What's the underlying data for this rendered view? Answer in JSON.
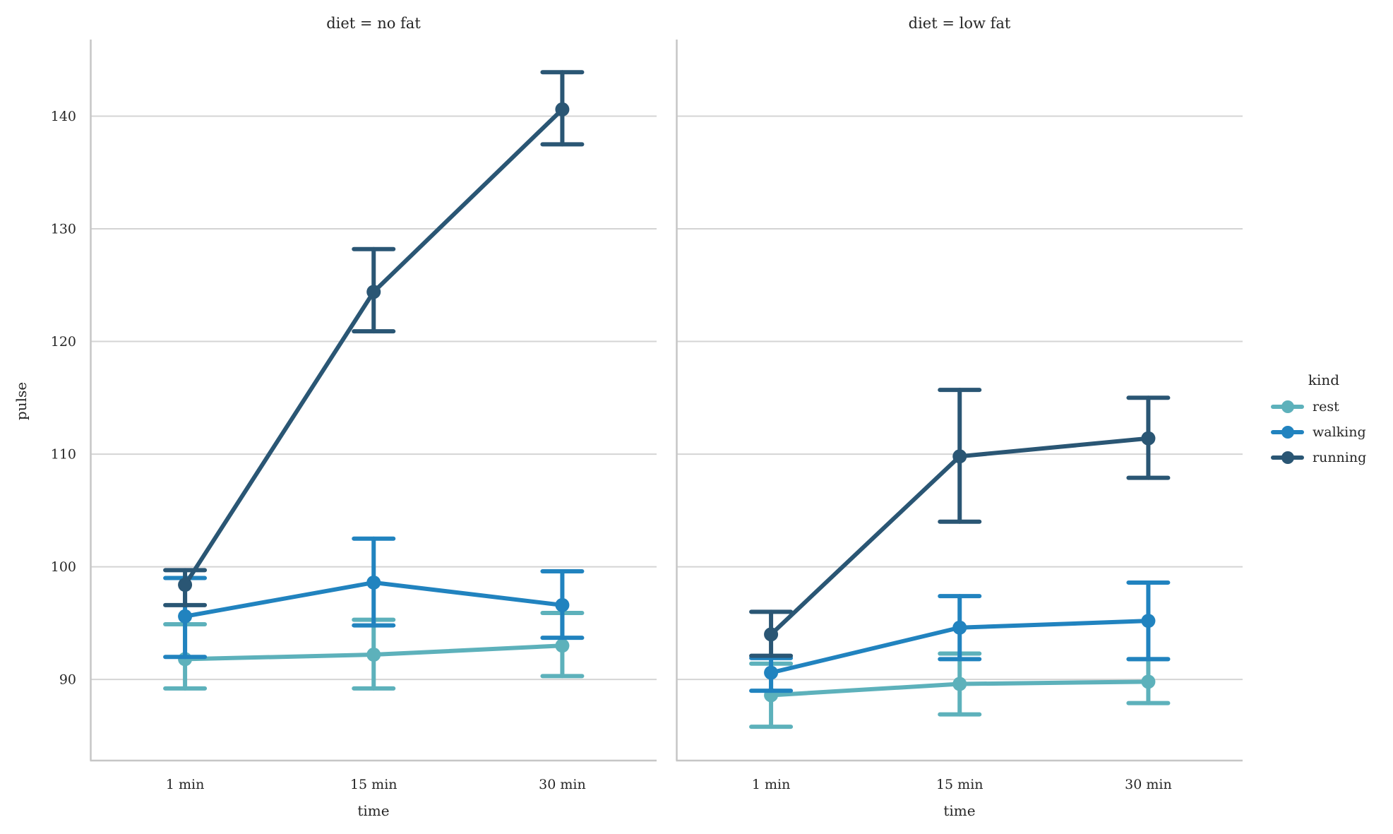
{
  "chart_data": {
    "type": "line",
    "subtype": "pointplot-with-error-bars",
    "xlabel": "time",
    "ylabel": "pulse",
    "categories": [
      "1 min",
      "15 min",
      "30 min"
    ],
    "yticks": [
      90,
      100,
      110,
      120,
      130,
      140
    ],
    "ylim": [
      82.8,
      146.8
    ],
    "grid": true,
    "legend": {
      "title": "kind",
      "position": "right"
    },
    "series_names": [
      "rest",
      "walking",
      "running"
    ],
    "colors": {
      "rest": "#5db1bb",
      "walking": "#2183bf",
      "running": "#2a5674"
    },
    "panels": [
      {
        "title": "diet = no fat",
        "series": [
          {
            "name": "rest",
            "color": "#5db1bb",
            "means": [
              91.8,
              92.2,
              93.0
            ],
            "ci_low": [
              89.2,
              89.2,
              90.3
            ],
            "ci_high": [
              94.9,
              95.3,
              95.9
            ]
          },
          {
            "name": "walking",
            "color": "#2183bf",
            "means": [
              95.6,
              98.6,
              96.6
            ],
            "ci_low": [
              92.0,
              94.8,
              93.7
            ],
            "ci_high": [
              99.0,
              102.5,
              99.6
            ]
          },
          {
            "name": "running",
            "color": "#2a5674",
            "means": [
              98.4,
              124.4,
              140.6
            ],
            "ci_low": [
              96.6,
              120.9,
              137.5
            ],
            "ci_high": [
              99.7,
              128.2,
              143.9
            ]
          }
        ]
      },
      {
        "title": "diet = low fat",
        "series": [
          {
            "name": "rest",
            "color": "#5db1bb",
            "means": [
              88.6,
              89.6,
              89.8
            ],
            "ci_low": [
              85.8,
              86.9,
              87.9
            ],
            "ci_high": [
              91.4,
              92.3,
              91.8
            ]
          },
          {
            "name": "walking",
            "color": "#2183bf",
            "means": [
              90.6,
              94.6,
              95.2
            ],
            "ci_low": [
              89.0,
              91.8,
              91.8
            ],
            "ci_high": [
              91.9,
              97.4,
              98.6
            ]
          },
          {
            "name": "running",
            "color": "#2a5674",
            "means": [
              94.0,
              109.8,
              111.4
            ],
            "ci_low": [
              92.1,
              104.0,
              107.9
            ],
            "ci_high": [
              96.0,
              115.7,
              115.0
            ]
          }
        ]
      }
    ],
    "style": {
      "background": "#ffffff",
      "text_color": "#262626",
      "grid_color": "#d4d4d4",
      "spine_color": "#c6c6c6"
    }
  }
}
